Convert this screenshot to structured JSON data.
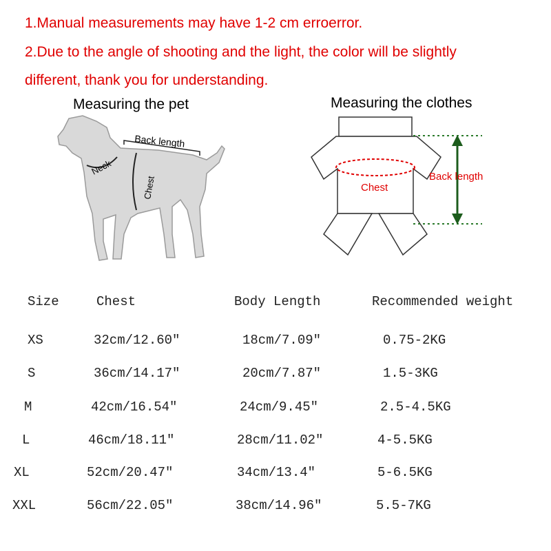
{
  "notes": [
    "1.Manual measurements may have 1-2 cm erroerror.",
    "2.Due to the angle of shooting and the light, the color will be slightly",
    "different, thank you for understanding."
  ],
  "pet_diagram": {
    "title": "Measuring the pet",
    "labels": [
      "Back length",
      "Neck",
      "Chest"
    ]
  },
  "clothes_diagram": {
    "title": "Measuring the clothes",
    "labels": [
      "Chest",
      "Back length"
    ]
  },
  "table": {
    "header": [
      "Size",
      "Chest",
      "Body Length",
      "Recommended weight"
    ],
    "rows": [
      [
        "XS",
        "32cm/12.60″",
        "18cm/7.09″",
        "0.75-2KG"
      ],
      [
        "S",
        "36cm/14.17″",
        "20cm/7.87″",
        "1.5-3KG"
      ],
      [
        "M",
        "42cm/16.54″",
        "24cm/9.45″",
        "2.5-4.5KG"
      ],
      [
        "L",
        "46cm/18.11″",
        "28cm/11.02″",
        "4-5.5KG"
      ],
      [
        "XL",
        "52cm/20.47″",
        "34cm/13.4″",
        "5-6.5KG"
      ],
      [
        "XXL",
        "56cm/22.05″",
        "38cm/14.96″",
        "5.5-7KG"
      ]
    ]
  }
}
